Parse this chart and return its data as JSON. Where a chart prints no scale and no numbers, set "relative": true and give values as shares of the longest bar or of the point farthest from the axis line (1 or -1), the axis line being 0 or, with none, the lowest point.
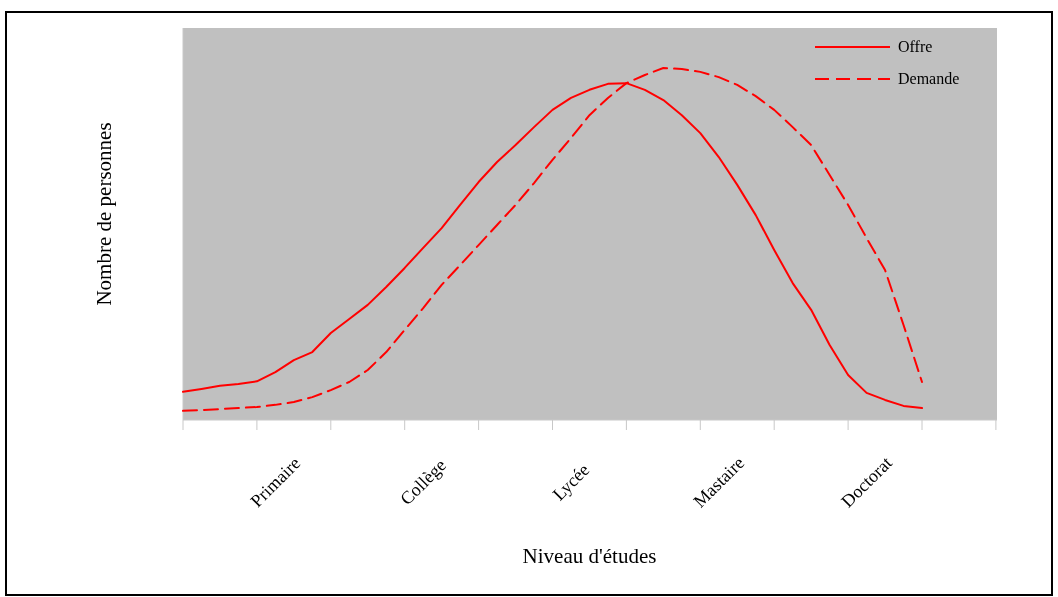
{
  "chart_data": {
    "type": "line",
    "relative": true,
    "xlabel": "Niveau d'études",
    "ylabel": "Nombre de personnes",
    "categories": [
      null,
      null,
      null,
      null,
      null,
      "Primaire",
      null,
      null,
      null,
      null,
      null,
      null,
      null,
      "Collège",
      null,
      null,
      null,
      null,
      null,
      null,
      null,
      "Lycée",
      null,
      null,
      null,
      null,
      null,
      null,
      null,
      "Mastaire",
      null,
      null,
      null,
      null,
      null,
      null,
      null,
      "Doctorat",
      null,
      null,
      null
    ],
    "series": [
      {
        "name": "Offre",
        "color": "#ff0000",
        "line_style": "solid",
        "values": [
          0.08,
          0.088,
          0.097,
          0.102,
          0.11,
          0.136,
          0.17,
          0.193,
          0.247,
          0.287,
          0.327,
          0.378,
          0.432,
          0.489,
          0.545,
          0.611,
          0.676,
          0.733,
          0.781,
          0.832,
          0.881,
          0.915,
          0.938,
          0.955,
          0.957,
          0.938,
          0.909,
          0.866,
          0.815,
          0.747,
          0.668,
          0.582,
          0.483,
          0.389,
          0.313,
          0.213,
          0.128,
          0.077,
          0.057,
          0.04,
          0.034
        ]
      },
      {
        "name": "Demande",
        "color": "#ff0000",
        "line_style": "dashed",
        "values": [
          0.026,
          0.028,
          0.031,
          0.034,
          0.037,
          0.043,
          0.051,
          0.065,
          0.085,
          0.108,
          0.142,
          0.193,
          0.256,
          0.318,
          0.384,
          0.44,
          0.497,
          0.554,
          0.611,
          0.673,
          0.739,
          0.801,
          0.866,
          0.915,
          0.957,
          0.98,
          1.0,
          0.997,
          0.989,
          0.974,
          0.952,
          0.92,
          0.881,
          0.832,
          0.781,
          0.696,
          0.611,
          0.517,
          0.426,
          0.27,
          0.108
        ]
      }
    ],
    "legend": "top right",
    "marker": "none"
  }
}
